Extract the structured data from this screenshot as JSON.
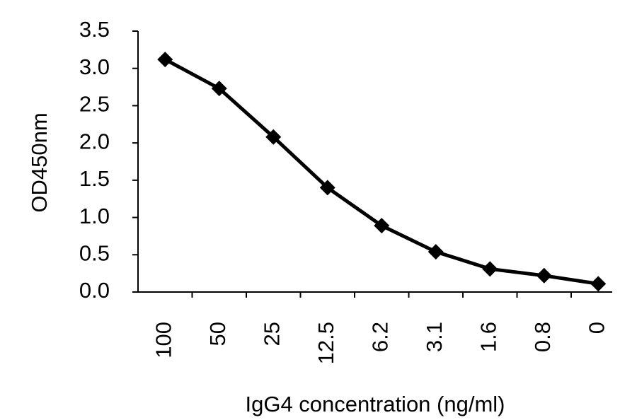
{
  "chart_data": {
    "type": "line",
    "x_label": "IgG4 concentration (ng/ml)",
    "y_label": "OD450nm",
    "categories": [
      "100",
      "50",
      "25",
      "12.5",
      "6.2",
      "3.1",
      "1.6",
      "0.8",
      "0"
    ],
    "values": [
      3.12,
      2.73,
      2.08,
      1.4,
      0.89,
      0.54,
      0.31,
      0.22,
      0.11
    ],
    "color": "#000000",
    "marker": "diamond",
    "ylim": [
      0,
      3.5
    ],
    "yticks": [
      {
        "value": 0,
        "label": "0.0"
      },
      0.5,
      {
        "value": 1,
        "label": "1.0"
      },
      1.5,
      {
        "value": 2,
        "label": "2.0"
      },
      2.5,
      {
        "value": 3,
        "label": "3.0"
      },
      3.5
    ],
    "grid": false
  }
}
